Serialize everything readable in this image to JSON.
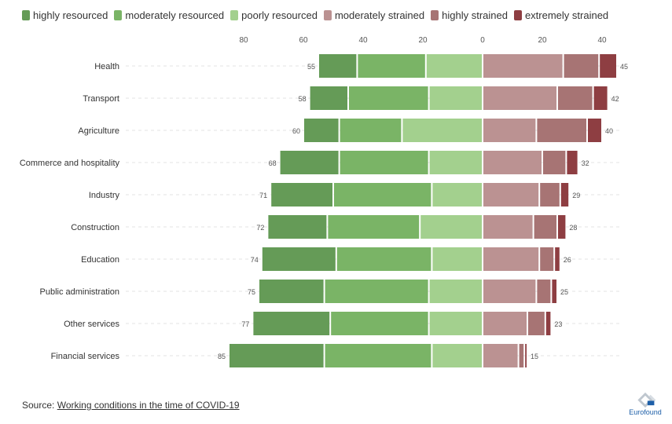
{
  "legend": [
    {
      "label": "highly resourced",
      "color": "#659b57"
    },
    {
      "label": "moderately resourced",
      "color": "#7ab466"
    },
    {
      "label": "poorly resourced",
      "color": "#a3d08e"
    },
    {
      "label": "moderately strained",
      "color": "#bb9292"
    },
    {
      "label": "highly strained",
      "color": "#a77474"
    },
    {
      "label": "extremely strained",
      "color": "#8e3e42"
    }
  ],
  "source": {
    "prefix": "Source: ",
    "link": "Working conditions in the time of COVID-19"
  },
  "logo": {
    "text": "Eurofound",
    "icon": "eurofound-logo-icon"
  },
  "chart_data": {
    "type": "bar",
    "orientation": "horizontal-diverging",
    "categories": [
      "Health",
      "Transport",
      "Agriculture",
      "Commerce and hospitality",
      "Industry",
      "Construction",
      "Education",
      "Public administration",
      "Other services",
      "Financial services"
    ],
    "series": [
      {
        "name": "highly resourced",
        "side": "left",
        "color": "#659b57",
        "values": [
          13,
          13,
          12,
          20,
          21,
          20,
          25,
          22,
          26,
          32
        ]
      },
      {
        "name": "moderately resourced",
        "side": "left",
        "color": "#7ab466",
        "values": [
          23,
          27,
          21,
          30,
          33,
          31,
          32,
          35,
          33,
          36
        ]
      },
      {
        "name": "poorly resourced",
        "side": "left",
        "color": "#a3d08e",
        "values": [
          19,
          18,
          27,
          18,
          17,
          21,
          17,
          18,
          18,
          17
        ]
      },
      {
        "name": "moderately strained",
        "side": "right",
        "color": "#bb9292",
        "values": [
          27,
          25,
          18,
          20,
          19,
          17,
          19,
          18,
          15,
          12
        ]
      },
      {
        "name": "highly strained",
        "side": "right",
        "color": "#a77474",
        "values": [
          12,
          12,
          17,
          8,
          7,
          8,
          5,
          5,
          6,
          2
        ]
      },
      {
        "name": "extremely strained",
        "side": "right",
        "color": "#8e3e42",
        "values": [
          6,
          5,
          5,
          4,
          3,
          3,
          2,
          2,
          2,
          1
        ]
      }
    ],
    "left_totals": [
      55,
      58,
      60,
      68,
      71,
      72,
      74,
      75,
      77,
      85
    ],
    "right_totals": [
      45,
      42,
      40,
      32,
      29,
      28,
      26,
      25,
      23,
      15
    ],
    "x_ticks": [
      {
        "value": -80,
        "label": "80"
      },
      {
        "value": -60,
        "label": "60"
      },
      {
        "value": -40,
        "label": "40"
      },
      {
        "value": -20,
        "label": "20"
      },
      {
        "value": 0,
        "label": "0"
      },
      {
        "value": 20,
        "label": "20"
      },
      {
        "value": 40,
        "label": "40"
      }
    ],
    "xlim": [
      -85,
      45
    ],
    "legend_position": "top-left",
    "grid": true
  }
}
